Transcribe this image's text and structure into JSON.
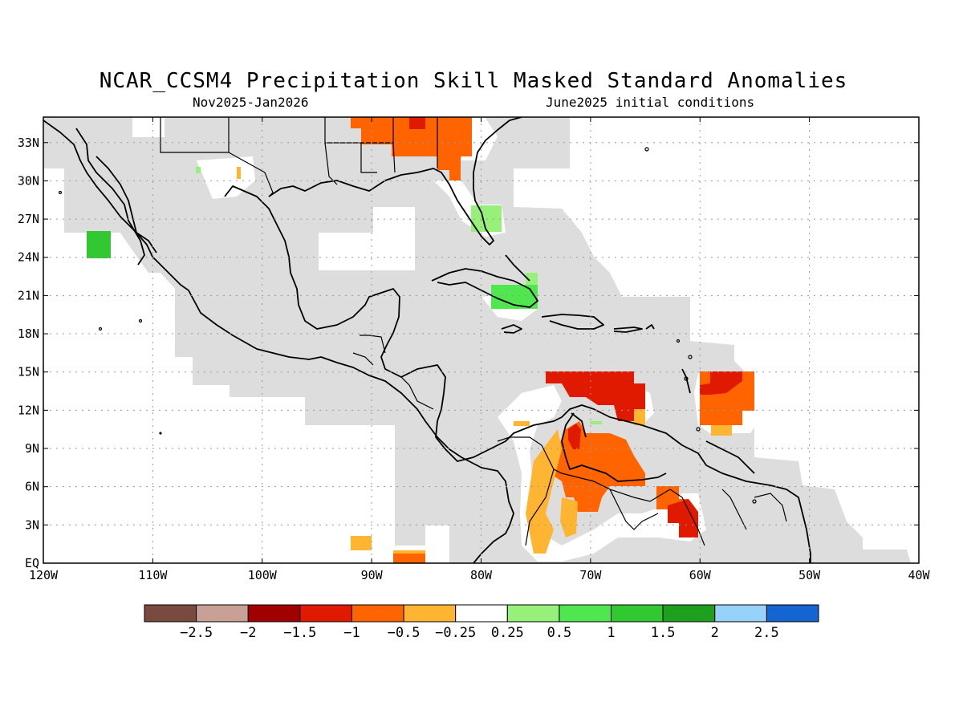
{
  "header": {
    "title": "NCAR_CCSM4 Precipitation Skill Masked Standard Anomalies",
    "period": "Nov2025-Jan2026",
    "init": "June2025 initial conditions"
  },
  "map": {
    "region": "Caribbean / Central America / Gulf of Mexico",
    "lon_range": [
      -120,
      -40
    ],
    "lat_range": [
      0,
      35
    ],
    "lat_labels": [
      "EQ",
      "3N",
      "6N",
      "9N",
      "12N",
      "15N",
      "18N",
      "21N",
      "24N",
      "27N",
      "30N",
      "33N"
    ],
    "lat_values": [
      0,
      3,
      6,
      9,
      12,
      15,
      18,
      21,
      24,
      27,
      30,
      33
    ],
    "lon_labels": [
      "120W",
      "110W",
      "100W",
      "90W",
      "80W",
      "70W",
      "60W",
      "50W",
      "40W"
    ],
    "lon_values": [
      -120,
      -110,
      -100,
      -90,
      -80,
      -70,
      -60,
      -50,
      -40
    ],
    "grid": true,
    "masked_color": "#dddddd"
  },
  "colorbar": {
    "colors": [
      "#7a4a40",
      "#c8a096",
      "#a00000",
      "#e01a00",
      "#ff6400",
      "#ffb432",
      "#ffffff",
      "#96f07a",
      "#50e650",
      "#32c832",
      "#1ea01e",
      "#96d2fa",
      "#1464d2"
    ],
    "labels": [
      "−2.5",
      "−2",
      "−1.5",
      "−1",
      "−0.5",
      "−0.25",
      "0.25",
      "0.5",
      "1",
      "1.5",
      "2",
      "2.5"
    ]
  }
}
